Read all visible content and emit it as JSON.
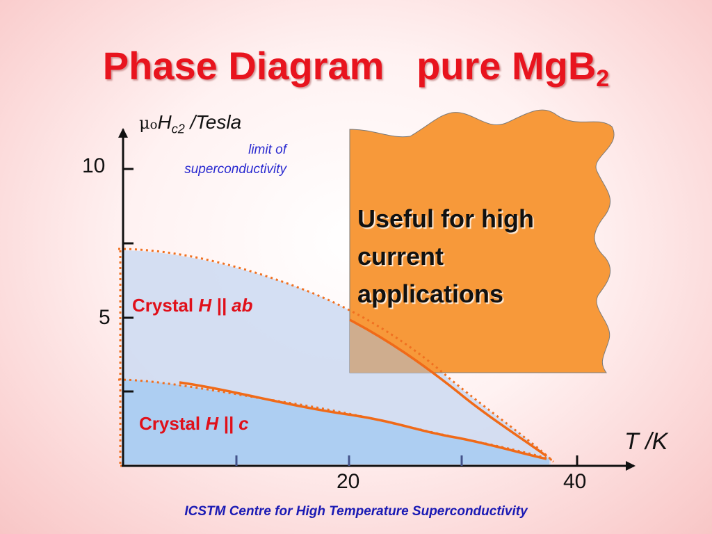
{
  "title": {
    "main": "Phase Diagram   pure MgB",
    "subscript": "2"
  },
  "y_axis": {
    "mu": "μ",
    "o": "o",
    "H": "H",
    "sub": "c2",
    "unit": " /Tesla",
    "ticks": [
      "10",
      "5"
    ]
  },
  "limit_note": {
    "line1": "limit of",
    "line2": "superconductivity"
  },
  "x_axis": {
    "label": "T /K",
    "ticks": [
      "20",
      "40"
    ]
  },
  "regions": {
    "ab": {
      "prefix": "Crystal ",
      "field": "H",
      "sep": " || ",
      "dir": "ab"
    },
    "c": {
      "prefix": "Crystal ",
      "field": "H",
      "sep": " || ",
      "dir": "c"
    }
  },
  "callout": {
    "text": "Useful for high current applications"
  },
  "footer": "ICSTM Centre for High Temperature Superconductivity",
  "colors": {
    "title": "#e8141e",
    "region_ab": "#cfdcf2",
    "region_c": "#a8ccf2",
    "curve": "#f06a18",
    "callout_fill": "#f7993a",
    "footer": "#1a1ab4"
  }
}
